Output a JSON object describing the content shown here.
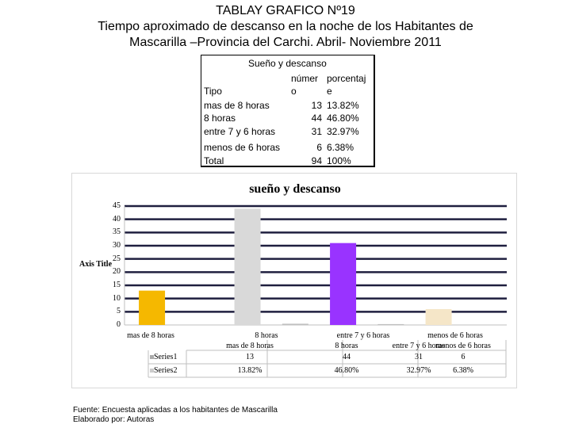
{
  "slide": {
    "title_line1": "TABLAY GRAFICO Nº19",
    "title_line2": "Tiempo aproximado de descanso en la noche de los Habitantes de",
    "title_line3": "Mascarilla –Provincia del Carchi. Abril- Noviembre 2011",
    "footer_line1": "Fuente: Encuesta aplicadas a los habitantes de Mascarilla",
    "footer_line2": "Elaborado por: Autoras"
  },
  "table": {
    "header": "Sueño y descanso",
    "col_tipo": "Tipo",
    "col_numero_a": "númer",
    "col_numero_b": "o",
    "col_pct_a": "porcentaj",
    "col_pct_b": "e",
    "rows": [
      {
        "tipo": "mas de 8 horas",
        "numero": "13",
        "pct": "13.82%"
      },
      {
        "tipo": "8 horas",
        "numero": "44",
        "pct": "46.80%"
      },
      {
        "tipo": "entre 7 y 6 horas",
        "numero": "31",
        "pct": "32.97%"
      },
      {
        "tipo": "menos de 6 horas",
        "numero": "6",
        "pct": "6.38%"
      },
      {
        "tipo": "Total",
        "numero": "94",
        "pct": "100%"
      }
    ]
  },
  "chart_data": {
    "type": "bar",
    "title": "sueño y descanso",
    "ylabel": "Axis Title",
    "ylim": [
      0,
      45
    ],
    "yticks": [
      "0",
      "5",
      "10",
      "15",
      "20",
      "25",
      "30",
      "35",
      "40",
      "45"
    ],
    "categories": [
      "mas de 8 horas",
      "8 horas",
      "entre 7 y 6 horas",
      "menos de 6 horas"
    ],
    "series": [
      {
        "name": "Series1",
        "values": [
          13,
          44,
          31,
          6
        ],
        "colors": [
          "#f5b800",
          "#d9d9d9",
          "#9933ff",
          "#f5e6c8"
        ]
      },
      {
        "name": "Series2",
        "values": [
          0.1382,
          0.468,
          0.3297,
          0.0638
        ]
      }
    ],
    "data_table": {
      "series1_labels": [
        "13",
        "44",
        "31",
        "6"
      ],
      "series2_labels": [
        "13.82%",
        "46.80%",
        "32.97%",
        "6.38%"
      ]
    },
    "grid": true
  }
}
